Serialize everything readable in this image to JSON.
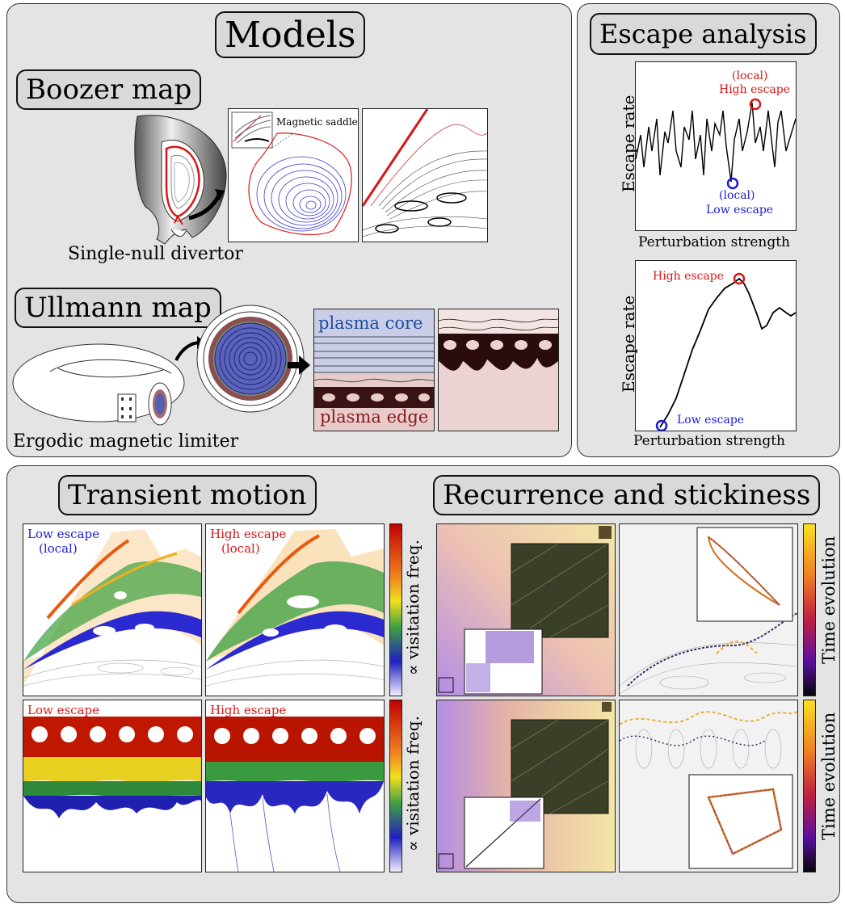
{
  "models": {
    "title": "Models",
    "boozer": {
      "title": "Boozer map",
      "caption": "Single-null divertor",
      "saddle_label": "Magnetic saddle"
    },
    "ullmann": {
      "title": "Ullmann map",
      "caption": "Ergodic magnetic limiter",
      "core_label": "plasma core",
      "edge_label": "plasma edge"
    }
  },
  "escape": {
    "title": "Escape analysis",
    "top": {
      "ylabel": "Escape rate",
      "xlabel": "Perturbation strength",
      "high_label_1": "(local)",
      "high_label_2": "High escape",
      "low_label_1": "(local)",
      "low_label_2": "Low escape"
    },
    "bottom": {
      "ylabel": "Escape rate",
      "xlabel": "Perturbation strength",
      "high_label": "High escape",
      "low_label": "Low escape"
    }
  },
  "transient": {
    "title": "Transient motion",
    "tl_label_1": "Low escape",
    "tl_label_2": "(local)",
    "tr_label_1": "High escape",
    "tr_label_2": "(local)",
    "bl_label": "Low escape",
    "br_label": "High escape",
    "colorbar_label": "∝ visitation freq."
  },
  "recurrence": {
    "title": "Recurrence and stickiness",
    "colorbar_label": "Time evolution"
  },
  "colors": {
    "panel": "#e4e4e4",
    "high": "#d81818",
    "low": "#1a1ad8",
    "core": "#1f4ea0",
    "edge": "#8a1a1a"
  }
}
